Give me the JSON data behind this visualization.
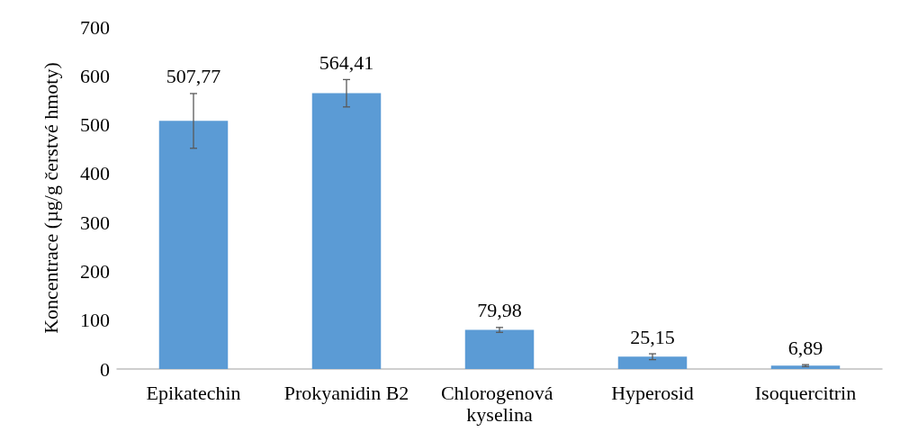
{
  "chart_data": {
    "type": "bar",
    "ylabel": "Koncentrace (µg/g čerstvé hmoty)",
    "categories": [
      "Epikatechin",
      "Prokyanidin B2",
      "Chlorogenová kyselina",
      "Hyperosid",
      "Isoquercitrin"
    ],
    "values": [
      507.77,
      564.41,
      79.98,
      25.15,
      6.89
    ],
    "errors": [
      56,
      28,
      5,
      6,
      2
    ],
    "value_labels": [
      "507,77",
      "564,41",
      "79,98",
      "25,15",
      "6,89"
    ],
    "color": "#5b9bd5",
    "ylim": [
      0,
      700
    ],
    "yticks": [
      0,
      100,
      200,
      300,
      400,
      500,
      600,
      700
    ],
    "grid": false
  }
}
